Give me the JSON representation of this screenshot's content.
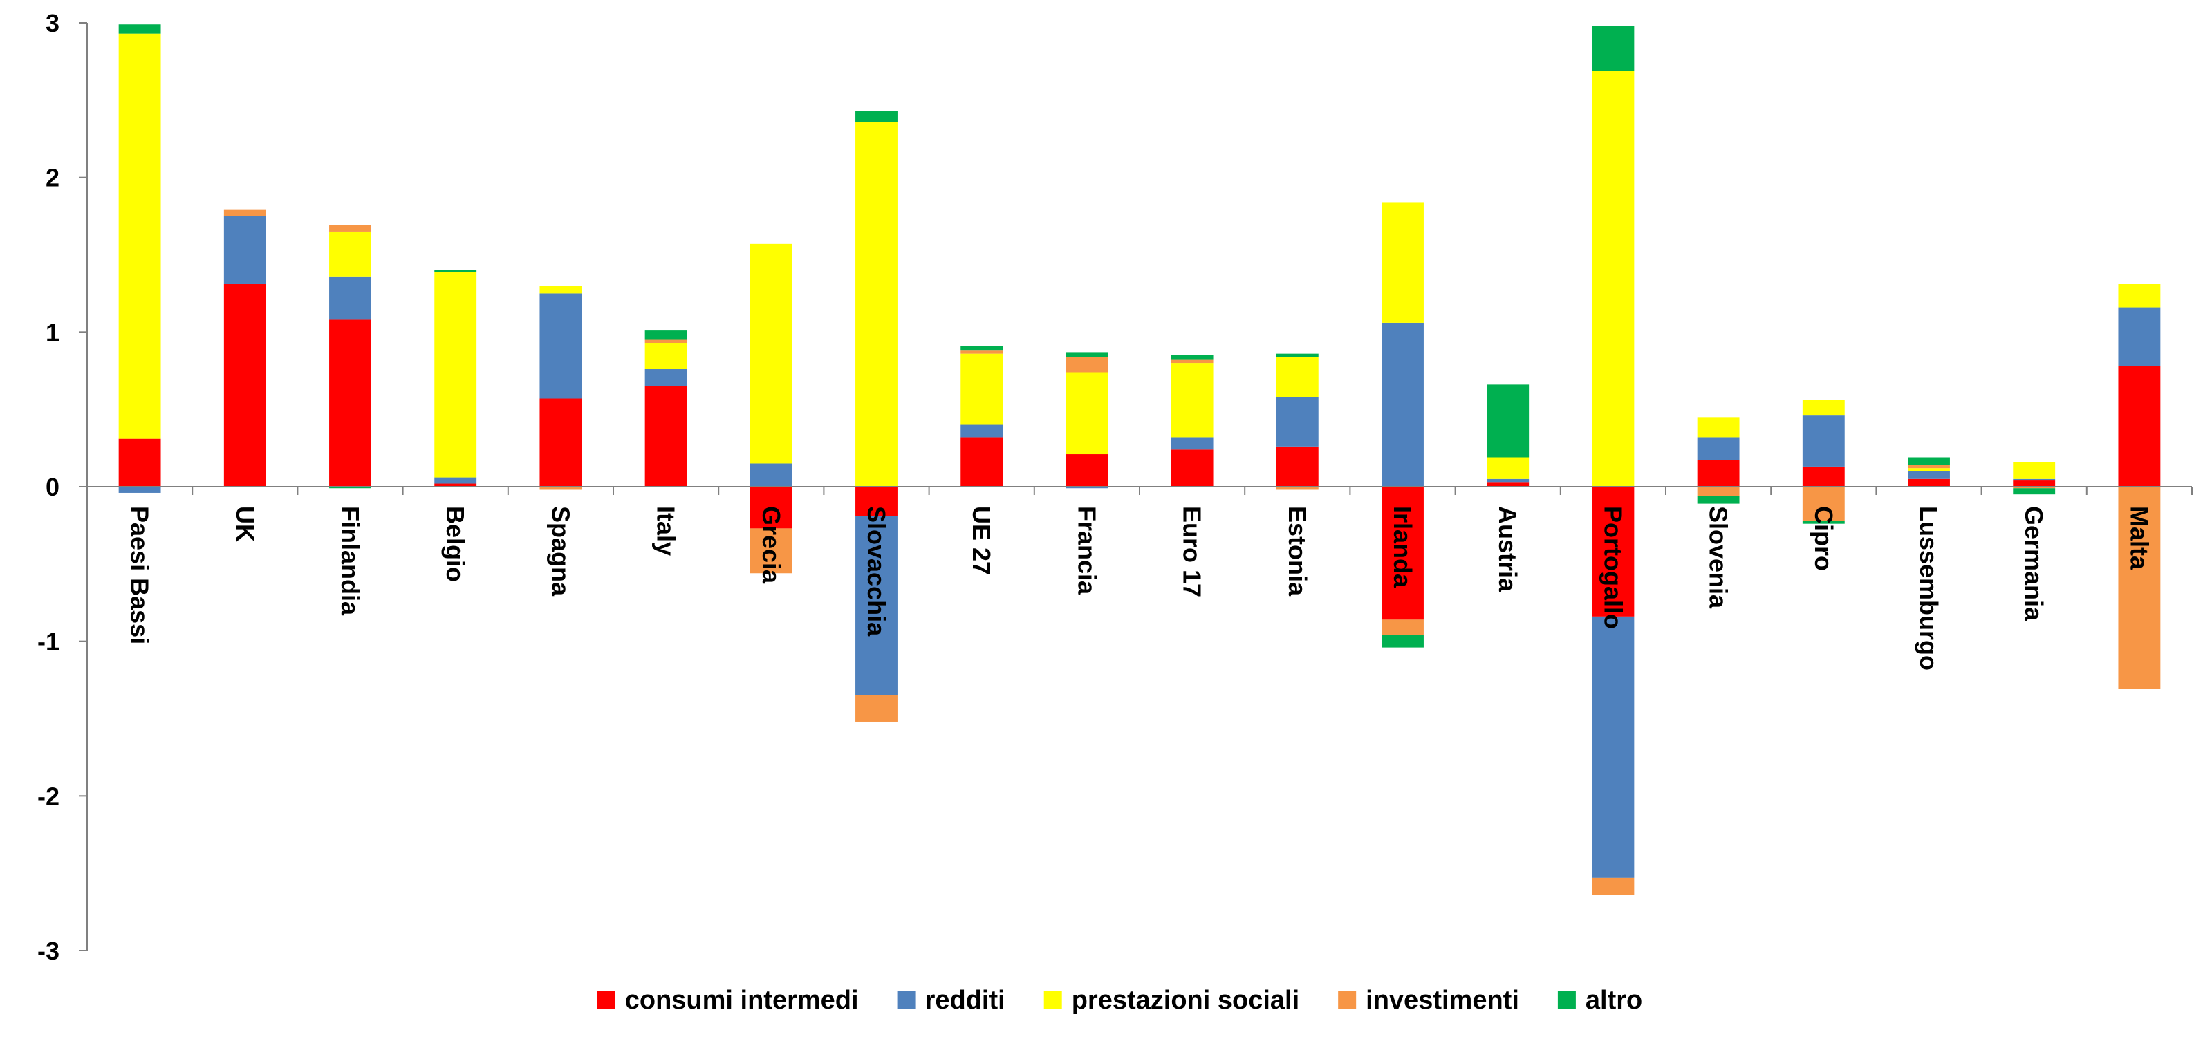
{
  "chart_data": {
    "type": "bar",
    "stacked": true,
    "title": "",
    "xlabel": "",
    "ylabel": "",
    "ylim": [
      -3,
      3
    ],
    "yticks": [
      3,
      2,
      1,
      0,
      -1,
      -2,
      -3
    ],
    "grid": false,
    "legend_position": "bottom",
    "categories": [
      "Paesi Bassi",
      "UK",
      "Finlandia",
      "Belgio",
      "Spagna",
      "Italy",
      "Grecia",
      "Slovacchia",
      "UE 27",
      "Francia",
      "Euro 17",
      "Estonia",
      "Irlanda",
      "Austria",
      "Portogallo",
      "Slovenia",
      "Cipro",
      "Lussemburgo",
      "Germania",
      "Malta"
    ],
    "series": [
      {
        "name": "consumi intermedi",
        "color": "#ff0000",
        "values": [
          0.31,
          1.31,
          1.08,
          0.02,
          0.57,
          0.65,
          -0.27,
          -0.19,
          0.32,
          0.21,
          0.24,
          0.26,
          -0.86,
          0.03,
          -0.84,
          0.17,
          0.13,
          0.05,
          0.04,
          0.78
        ]
      },
      {
        "name": "redditi",
        "color": "#4f81bd",
        "values": [
          -0.04,
          0.44,
          0.28,
          0.04,
          0.68,
          0.11,
          0.15,
          -1.16,
          0.08,
          -0.01,
          0.08,
          0.32,
          1.06,
          0.02,
          -1.69,
          0.15,
          0.33,
          0.05,
          0.01,
          0.38
        ]
      },
      {
        "name": "prestazioni sociali",
        "color": "#ffff00",
        "values": [
          2.62,
          0,
          0.29,
          1.33,
          0.05,
          0.17,
          1.42,
          2.36,
          0.46,
          0.53,
          0.48,
          0.26,
          0.78,
          0.14,
          2.69,
          0.13,
          0.1,
          0.02,
          0.11,
          0.15
        ]
      },
      {
        "name": "investimenti",
        "color": "#f79646",
        "values": [
          0,
          0.04,
          0.04,
          0,
          -0.02,
          0.02,
          -0.29,
          -0.17,
          0.02,
          0.1,
          0.02,
          -0.02,
          -0.1,
          0,
          -0.11,
          -0.06,
          -0.22,
          0.02,
          -0.01,
          -1.31
        ]
      },
      {
        "name": "altro",
        "color": "#00b050",
        "values": [
          0.06,
          0,
          -0.01,
          0.01,
          0,
          0.06,
          0,
          0.07,
          0.03,
          0.03,
          0.03,
          0.02,
          -0.08,
          0.47,
          0.29,
          -0.05,
          -0.02,
          0.05,
          -0.04,
          0
        ]
      }
    ]
  }
}
